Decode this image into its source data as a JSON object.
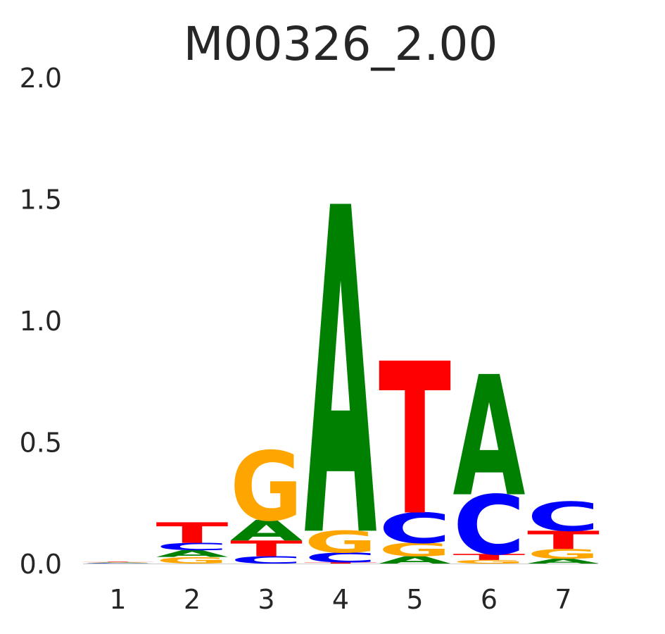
{
  "chart_data": {
    "type": "sequence-logo",
    "title": "M00326_2.00",
    "xlabel": "",
    "ylabel": "",
    "ylim": [
      0,
      2.0
    ],
    "y_ticks": [
      "2.0",
      "1.5",
      "1.0",
      "0.5",
      "0.0"
    ],
    "positions": [
      "1",
      "2",
      "3",
      "4",
      "5",
      "6",
      "7"
    ],
    "grid": false,
    "colors": {
      "A": "#008000",
      "C": "#0000ff",
      "G": "#ffa500",
      "T": "#ff0000"
    },
    "stacks": [
      [
        {
          "base": "C",
          "h": 0.002
        },
        {
          "base": "A",
          "h": 0.002
        },
        {
          "base": "G",
          "h": 0.002
        },
        {
          "base": "T",
          "h": 0.002
        }
      ],
      [
        {
          "base": "G",
          "h": 0.027
        },
        {
          "base": "A",
          "h": 0.028
        },
        {
          "base": "C",
          "h": 0.03
        },
        {
          "base": "T",
          "h": 0.085
        }
      ],
      [
        {
          "base": "C",
          "h": 0.03
        },
        {
          "base": "T",
          "h": 0.065
        },
        {
          "base": "A",
          "h": 0.085
        },
        {
          "base": "G",
          "h": 0.285
        }
      ],
      [
        {
          "base": "T",
          "h": 0.005
        },
        {
          "base": "C",
          "h": 0.04
        },
        {
          "base": "G",
          "h": 0.09
        },
        {
          "base": "A",
          "h": 1.345
        }
      ],
      [
        {
          "base": "A",
          "h": 0.03
        },
        {
          "base": "G",
          "h": 0.055
        },
        {
          "base": "C",
          "h": 0.125
        },
        {
          "base": "T",
          "h": 0.625
        }
      ],
      [
        {
          "base": "G",
          "h": 0.015
        },
        {
          "base": "T",
          "h": 0.025
        },
        {
          "base": "C",
          "h": 0.245
        },
        {
          "base": "A",
          "h": 0.495
        }
      ],
      [
        {
          "base": "A",
          "h": 0.02
        },
        {
          "base": "G",
          "h": 0.04
        },
        {
          "base": "T",
          "h": 0.075
        },
        {
          "base": "C",
          "h": 0.12
        }
      ]
    ]
  }
}
